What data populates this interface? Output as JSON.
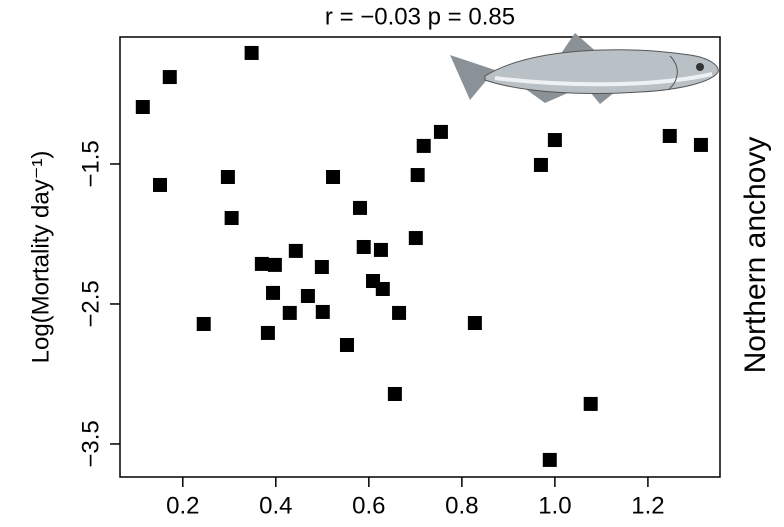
{
  "chart_data": {
    "type": "scatter",
    "title": "r =  −0.03   p =  0.85",
    "y_label": "Log(Mortality day⁻¹)",
    "side_label": "Northern anchovy",
    "color": "#000000",
    "xlim": [
      0.065,
      1.355
    ],
    "ylim": [
      -3.736,
      -0.593
    ],
    "xticks": [
      0.2,
      0.4,
      0.6,
      0.8,
      {
        "value": 1,
        "label": "1.0"
      },
      1.2
    ],
    "yticks": [
      {
        "value": -1.5,
        "label": "−1.5"
      },
      {
        "value": -2.5,
        "label": "−2.5"
      },
      {
        "value": -3.5,
        "label": "−3.5"
      }
    ],
    "x": [
      0.114,
      0.172,
      0.151,
      0.348,
      0.297,
      0.305,
      0.245,
      0.37,
      0.398,
      0.443,
      0.394,
      0.383,
      0.43,
      0.469,
      0.499,
      0.501,
      0.523,
      0.553,
      0.581,
      0.589,
      0.609,
      0.626,
      0.63,
      0.665,
      0.656,
      0.701,
      0.705,
      0.718,
      0.755,
      0.828,
      0.97,
      1.0,
      0.989,
      1.077,
      1.247,
      1.314
    ],
    "values": [
      -1.093,
      -0.879,
      -1.65,
      -0.707,
      -1.593,
      -1.886,
      -2.643,
      -2.214,
      -2.221,
      -2.121,
      -2.421,
      -2.707,
      -2.564,
      -2.443,
      -2.236,
      -2.557,
      -1.593,
      -2.793,
      -1.814,
      -2.093,
      -2.336,
      -2.114,
      -2.393,
      -2.564,
      -3.143,
      -2.029,
      -1.579,
      -1.371,
      -1.271,
      -2.636,
      -1.507,
      -1.329,
      -3.614,
      -3.214,
      -1.3,
      -1.364
    ]
  }
}
